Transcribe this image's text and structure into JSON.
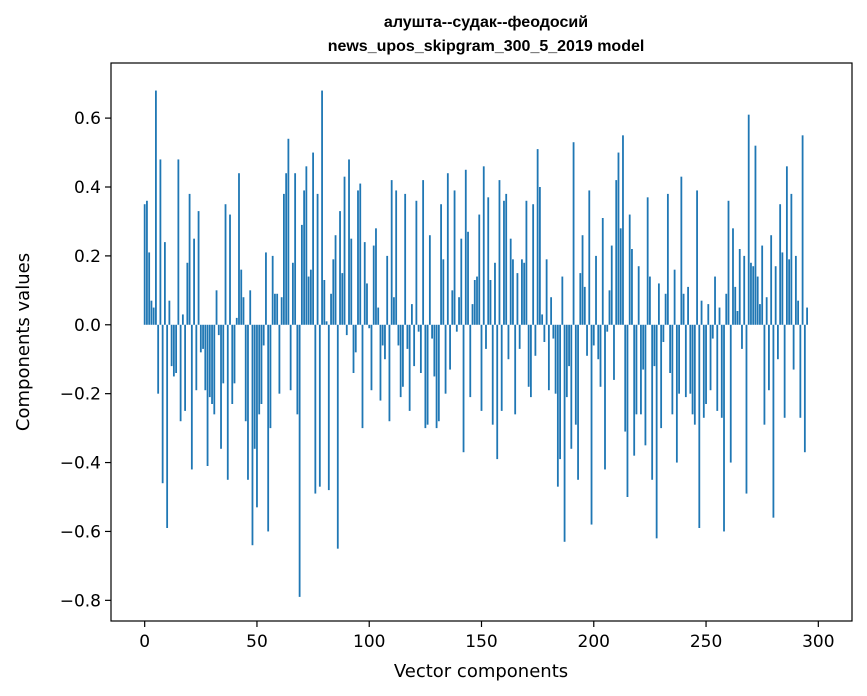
{
  "chart_data": {
    "type": "bar",
    "title_lines": [
      "алушта--судак--феодосий",
      "news_upos_skipgram_300_5_2019 model"
    ],
    "xlabel": "Vector components",
    "ylabel": "Components values",
    "xlim": [
      -15,
      315
    ],
    "ylim": [
      -0.86,
      0.76
    ],
    "xticks": [
      0,
      50,
      100,
      150,
      200,
      250,
      300
    ],
    "yticks": [
      -0.8,
      -0.6,
      -0.4,
      -0.2,
      0.0,
      0.2,
      0.4,
      0.6
    ],
    "ytick_labels": [
      "−0.8",
      "−0.6",
      "−0.4",
      "−0.2",
      "0.0",
      "0.2",
      "0.4",
      "0.6"
    ],
    "bar_color": "#1f77b4",
    "grid": false,
    "x": "0..299",
    "values": [
      0.35,
      0.36,
      0.21,
      0.07,
      0.05,
      0.68,
      -0.2,
      0.48,
      -0.46,
      0.24,
      -0.59,
      0.07,
      -0.12,
      -0.15,
      -0.14,
      0.48,
      -0.28,
      0.03,
      -0.25,
      0.18,
      0.38,
      -0.42,
      0.25,
      -0.19,
      0.33,
      -0.08,
      -0.07,
      -0.19,
      -0.41,
      -0.21,
      -0.23,
      -0.26,
      0.1,
      -0.03,
      -0.36,
      -0.17,
      0.35,
      -0.45,
      0.32,
      -0.23,
      -0.17,
      0.02,
      0.44,
      0.16,
      0.08,
      -0.28,
      -0.45,
      0.1,
      -0.64,
      -0.36,
      -0.53,
      -0.26,
      -0.23,
      -0.06,
      0.21,
      -0.6,
      -0.3,
      0.2,
      0.09,
      0.09,
      -0.2,
      0.08,
      0.38,
      0.44,
      0.54,
      -0.19,
      0.18,
      0.44,
      -0.26,
      -0.79,
      0.29,
      0.39,
      0.46,
      0.14,
      0.16,
      0.5,
      -0.49,
      0.38,
      -0.47,
      0.68,
      0.13,
      0.01,
      -0.48,
      0.09,
      0.19,
      0.26,
      -0.65,
      0.33,
      0.15,
      0.43,
      -0.03,
      0.48,
      0.25,
      -0.14,
      -0.08,
      0.39,
      0.41,
      -0.3,
      0.24,
      0.12,
      -0.01,
      -0.19,
      0.23,
      0.28,
      0.05,
      -0.22,
      -0.06,
      -0.1,
      0.2,
      -0.28,
      0.42,
      0.08,
      0.39,
      -0.06,
      -0.21,
      -0.18,
      0.38,
      -0.07,
      -0.25,
      0.06,
      -0.12,
      0.36,
      -0.02,
      -0.14,
      0.42,
      -0.3,
      -0.29,
      0.26,
      -0.04,
      -0.15,
      -0.3,
      -0.28,
      0.35,
      0.19,
      -0.2,
      0.44,
      -0.13,
      0.1,
      0.39,
      -0.02,
      0.08,
      0.25,
      -0.37,
      0.45,
      0.27,
      -0.21,
      0.06,
      0.13,
      0.14,
      0.32,
      -0.25,
      0.46,
      -0.07,
      0.37,
      0.13,
      -0.29,
      0.18,
      -0.39,
      0.42,
      -0.25,
      0.36,
      0.38,
      -0.1,
      0.25,
      0.19,
      -0.26,
      0.15,
      -0.07,
      0.19,
      0.18,
      0.36,
      -0.18,
      -0.21,
      0.35,
      -0.09,
      0.51,
      0.4,
      0.03,
      -0.05,
      0.19,
      -0.19,
      0.08,
      -0.04,
      -0.2,
      -0.47,
      -0.39,
      0.14,
      -0.63,
      -0.21,
      -0.12,
      -0.36,
      0.53,
      -0.29,
      -0.45,
      0.15,
      0.26,
      0.11,
      -0.09,
      0.39,
      -0.58,
      -0.06,
      0.2,
      -0.1,
      -0.18,
      0.31,
      -0.42,
      -0.02,
      0.1,
      0.23,
      -0.16,
      0.42,
      0.5,
      0.28,
      0.55,
      -0.31,
      -0.5,
      0.32,
      0.22,
      -0.38,
      -0.26,
      0.17,
      -0.26,
      -0.13,
      -0.35,
      0.37,
      0.14,
      -0.45,
      -0.12,
      -0.62,
      0.12,
      -0.3,
      -0.05,
      0.09,
      0.38,
      -0.14,
      -0.26,
      0.16,
      -0.4,
      -0.2,
      0.43,
      0.09,
      -0.21,
      0.11,
      -0.2,
      -0.26,
      -0.29,
      0.39,
      -0.59,
      0.07,
      -0.27,
      -0.23,
      0.06,
      -0.19,
      -0.04,
      0.14,
      -0.25,
      0.05,
      -0.27,
      -0.6,
      0.09,
      0.36,
      -0.4,
      0.28,
      0.11,
      0.04,
      0.22,
      -0.07,
      0.2,
      -0.49,
      0.61,
      0.18,
      0.17,
      0.52,
      0.14,
      0.06,
      0.23,
      -0.29,
      0.08,
      -0.19,
      0.26,
      -0.56,
      0.17,
      -0.1,
      0.35,
      0.21,
      -0.27,
      0.46,
      0.19,
      0.38,
      -0.13,
      0.2,
      0.07,
      -0.27,
      0.55,
      -0.37,
      0.05
    ]
  }
}
